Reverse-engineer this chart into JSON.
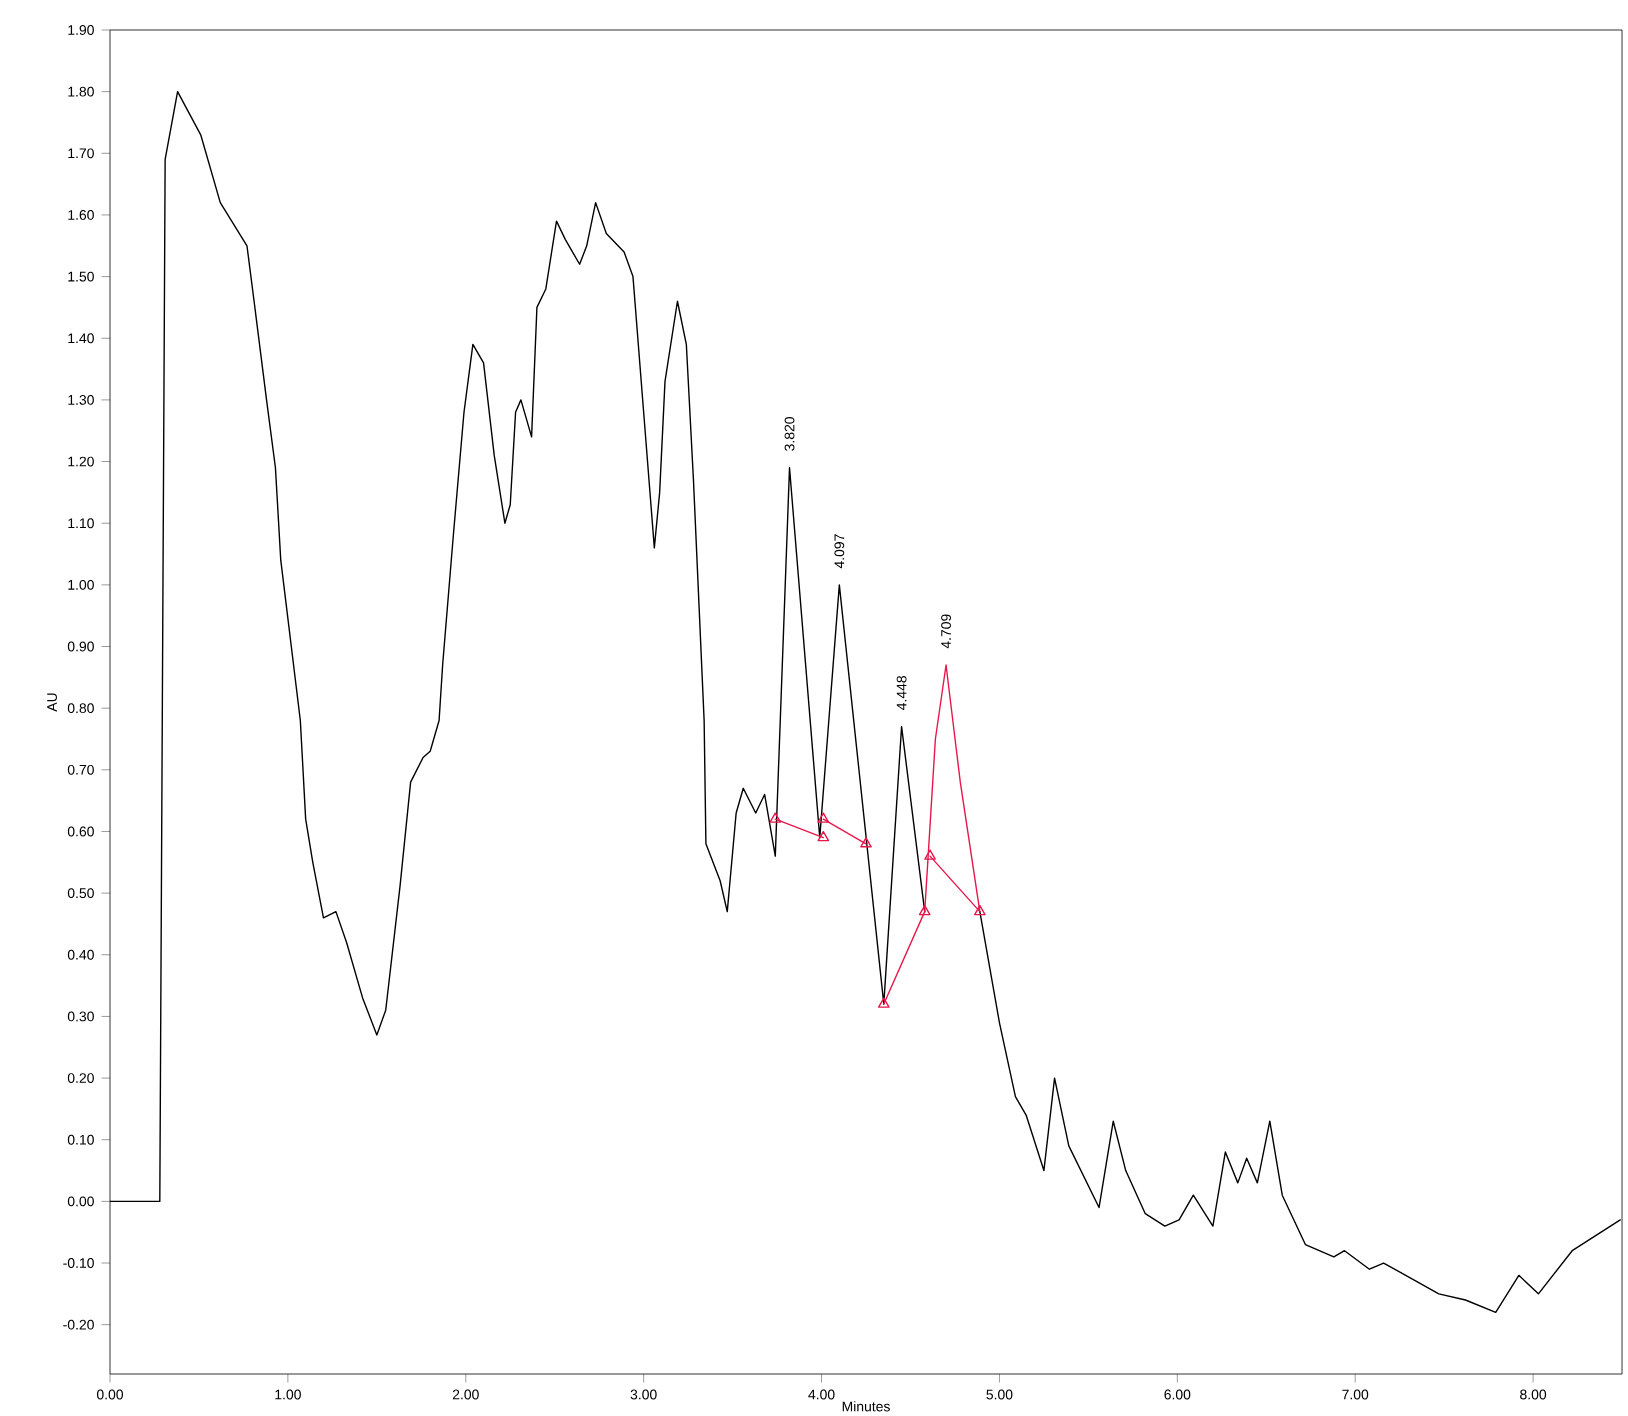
{
  "chart_data": {
    "type": "line",
    "xlabel": "Minutes",
    "ylabel": "AU",
    "xlim": [
      0,
      8.5
    ],
    "ylim": [
      -0.28,
      1.9
    ],
    "xticks": [
      {
        "value": 0,
        "label": "0.00"
      },
      {
        "value": 1,
        "label": "1.00"
      },
      {
        "value": 2,
        "label": "2.00"
      },
      {
        "value": 3,
        "label": "3.00"
      },
      {
        "value": 4,
        "label": "4.00"
      },
      {
        "value": 5,
        "label": "5.00"
      },
      {
        "value": 6,
        "label": "6.00"
      },
      {
        "value": 7,
        "label": "7.00"
      },
      {
        "value": 8,
        "label": "8.00"
      }
    ],
    "yticks": [
      {
        "value": -0.2,
        "label": "-0.20"
      },
      {
        "value": -0.1,
        "label": "-0.10"
      },
      {
        "value": 0,
        "label": "0.00"
      },
      {
        "value": 0.1,
        "label": "0.10"
      },
      {
        "value": 0.2,
        "label": "0.20"
      },
      {
        "value": 0.3,
        "label": "0.30"
      },
      {
        "value": 0.4,
        "label": "0.40"
      },
      {
        "value": 0.5,
        "label": "0.50"
      },
      {
        "value": 0.6,
        "label": "0.60"
      },
      {
        "value": 0.7,
        "label": "0.70"
      },
      {
        "value": 0.8,
        "label": "0.80"
      },
      {
        "value": 0.9,
        "label": "0.90"
      },
      {
        "value": 1.0,
        "label": "1.00"
      },
      {
        "value": 1.1,
        "label": "1.10"
      },
      {
        "value": 1.2,
        "label": "1.20"
      },
      {
        "value": 1.3,
        "label": "1.30"
      },
      {
        "value": 1.4,
        "label": "1.40"
      },
      {
        "value": 1.5,
        "label": "1.50"
      },
      {
        "value": 1.6,
        "label": "1.60"
      },
      {
        "value": 1.7,
        "label": "1.70"
      },
      {
        "value": 1.8,
        "label": "1.80"
      },
      {
        "value": 1.9,
        "label": "1.90"
      }
    ],
    "series": [
      {
        "color": "#000000",
        "marker": "none",
        "line_style": "solid",
        "x": [
          0,
          0.28,
          0.31,
          0.38,
          0.51,
          0.62,
          0.77,
          0.81,
          0.88,
          0.93,
          0.96,
          1.07,
          1.1,
          1.14,
          1.2,
          1.27,
          1.33,
          1.42,
          1.5,
          1.55,
          1.63,
          1.69,
          1.76,
          1.8,
          1.85,
          1.87,
          1.93,
          1.99,
          2.04,
          2.1,
          2.16,
          2.22,
          2.25,
          2.28,
          2.31,
          2.37,
          2.4,
          2.45,
          2.51,
          2.56,
          2.64,
          2.68,
          2.73,
          2.79,
          2.89,
          2.94,
          3.0,
          3.06,
          3.09,
          3.12,
          3.19,
          3.24,
          3.28,
          3.34,
          3.35,
          3.43,
          3.47,
          3.52,
          3.56,
          3.63,
          3.68,
          3.74,
          3.82,
          3.99,
          4.1,
          4.35,
          4.45,
          4.58,
          4.7,
          4.89,
          5.0,
          5.09,
          5.15,
          5.25,
          5.31,
          5.39,
          5.56,
          5.64,
          5.71,
          5.82,
          5.93,
          6.01,
          6.09,
          6.2,
          6.27,
          6.34,
          6.39,
          6.45,
          6.52,
          6.59,
          6.72,
          6.88,
          6.94,
          7.08,
          7.16,
          7.47,
          7.62,
          7.79,
          7.92,
          8.03,
          8.22,
          8.49
        ],
        "values": [
          0,
          0,
          1.69,
          1.8,
          1.73,
          1.62,
          1.55,
          1.46,
          1.3,
          1.19,
          1.04,
          0.78,
          0.62,
          0.55,
          0.46,
          0.47,
          0.42,
          0.33,
          0.27,
          0.31,
          0.51,
          0.68,
          0.72,
          0.73,
          0.78,
          0.87,
          1.08,
          1.28,
          1.39,
          1.36,
          1.21,
          1.1,
          1.13,
          1.28,
          1.3,
          1.24,
          1.45,
          1.48,
          1.59,
          1.56,
          1.52,
          1.55,
          1.62,
          1.57,
          1.54,
          1.5,
          1.28,
          1.06,
          1.15,
          1.33,
          1.46,
          1.39,
          1.17,
          0.78,
          0.58,
          0.52,
          0.47,
          0.63,
          0.67,
          0.63,
          0.66,
          0.56,
          1.19,
          0.59,
          1.0,
          0.32,
          0.77,
          0.47,
          null,
          0.47,
          0.29,
          0.17,
          0.14,
          0.05,
          0.2,
          0.09,
          -0.01,
          0.13,
          0.05,
          -0.02,
          -0.04,
          -0.03,
          0.01,
          -0.04,
          0.08,
          0.03,
          0.07,
          0.03,
          0.13,
          0.01,
          -0.07,
          -0.09,
          -0.08,
          -0.11,
          -0.1,
          -0.15,
          -0.16,
          -0.18,
          -0.12,
          -0.15,
          -0.08,
          -0.03
        ]
      },
      {
        "color": "#e8174a",
        "marker": "none",
        "line_style": "solid",
        "x": [
          4.58,
          4.64,
          4.7,
          4.78,
          4.89
        ],
        "values": [
          0.47,
          0.75,
          0.87,
          0.68,
          0.47
        ]
      },
      {
        "color": "#e8174a",
        "marker": "triangle",
        "line_style": "solid",
        "x": [
          3.74,
          4.01
        ],
        "values": [
          0.62,
          0.59
        ]
      },
      {
        "color": "#e8174a",
        "marker": "triangle",
        "line_style": "solid",
        "x": [
          4.01,
          4.25
        ],
        "values": [
          0.62,
          0.58
        ]
      },
      {
        "color": "#e8174a",
        "marker": "triangle",
        "line_style": "solid",
        "x": [
          4.35,
          4.58
        ],
        "values": [
          0.32,
          0.47
        ]
      },
      {
        "color": "#e8174a",
        "marker": "triangle",
        "line_style": "solid",
        "x": [
          4.61,
          4.89
        ],
        "values": [
          0.56,
          0.47
        ]
      }
    ],
    "annotations": [
      {
        "text": "3.820",
        "x": 3.82,
        "y": 1.19
      },
      {
        "text": "4.097",
        "x": 4.1,
        "y": 1.0
      },
      {
        "text": "4.448",
        "x": 4.45,
        "y": 0.77
      },
      {
        "text": "4.709",
        "x": 4.7,
        "y": 0.87
      }
    ]
  }
}
